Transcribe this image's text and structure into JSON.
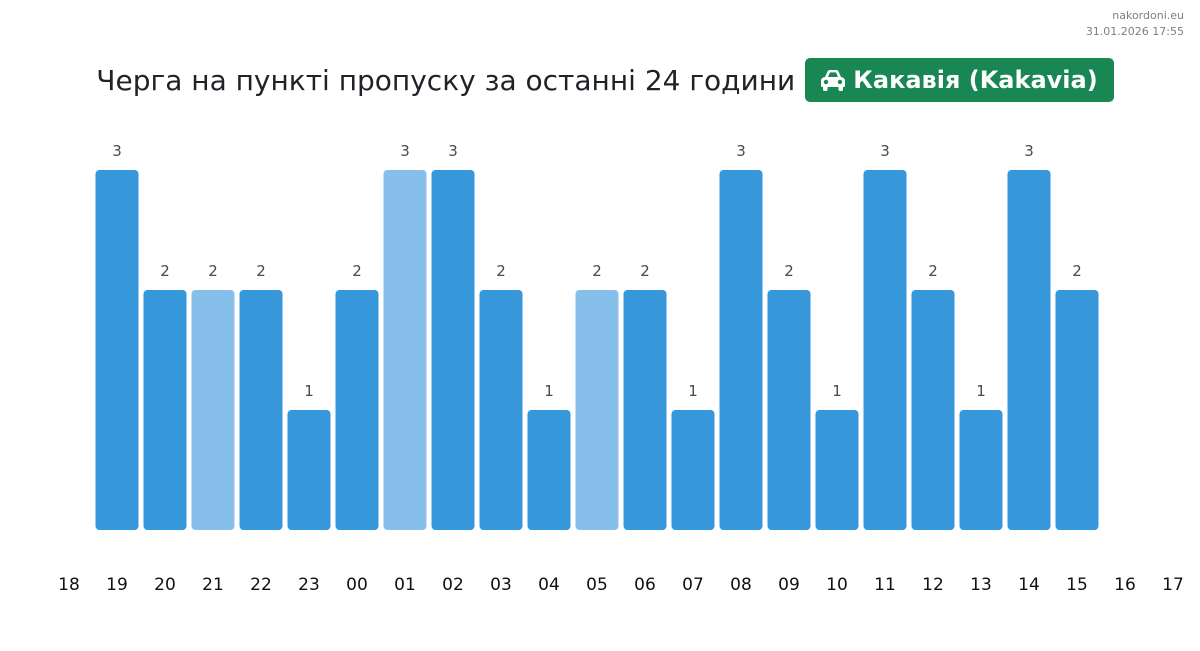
{
  "header": {
    "site": "nakordoni.eu",
    "timestamp": "31.01.2026 17:55",
    "title": "Черга на пункті пропуску за останні 24 години",
    "badge_label": "Какавія (Kakavia)",
    "badge_icon": "car-icon",
    "badge_color": "#198754"
  },
  "chart_data": {
    "type": "bar",
    "title": "Черга на пункті пропуску за останні 24 години",
    "xlabel": "",
    "ylabel": "",
    "ylim": [
      0,
      3
    ],
    "grid": false,
    "legend": "none",
    "tick_labels": [
      "18",
      "19",
      "20",
      "21",
      "22",
      "23",
      "00",
      "01",
      "02",
      "03",
      "04",
      "05",
      "06",
      "07",
      "08",
      "09",
      "10",
      "11",
      "12",
      "13",
      "14",
      "15",
      "16",
      "17"
    ],
    "categories": [
      "19",
      "20",
      "21",
      "22",
      "23",
      "00",
      "01",
      "02",
      "03",
      "04",
      "05",
      "06",
      "07",
      "08",
      "09",
      "10",
      "11",
      "12",
      "13",
      "14",
      "15"
    ],
    "values": [
      3,
      2,
      2,
      2,
      1,
      2,
      3,
      3,
      2,
      1,
      2,
      2,
      1,
      3,
      2,
      1,
      3,
      2,
      1,
      3,
      2
    ],
    "highlighted": [
      false,
      false,
      true,
      false,
      false,
      false,
      true,
      false,
      false,
      false,
      true,
      false,
      false,
      false,
      false,
      false,
      false,
      false,
      false,
      false,
      false
    ],
    "colors": {
      "bar": "#3797db",
      "bar_light": "#86c0ea"
    }
  }
}
